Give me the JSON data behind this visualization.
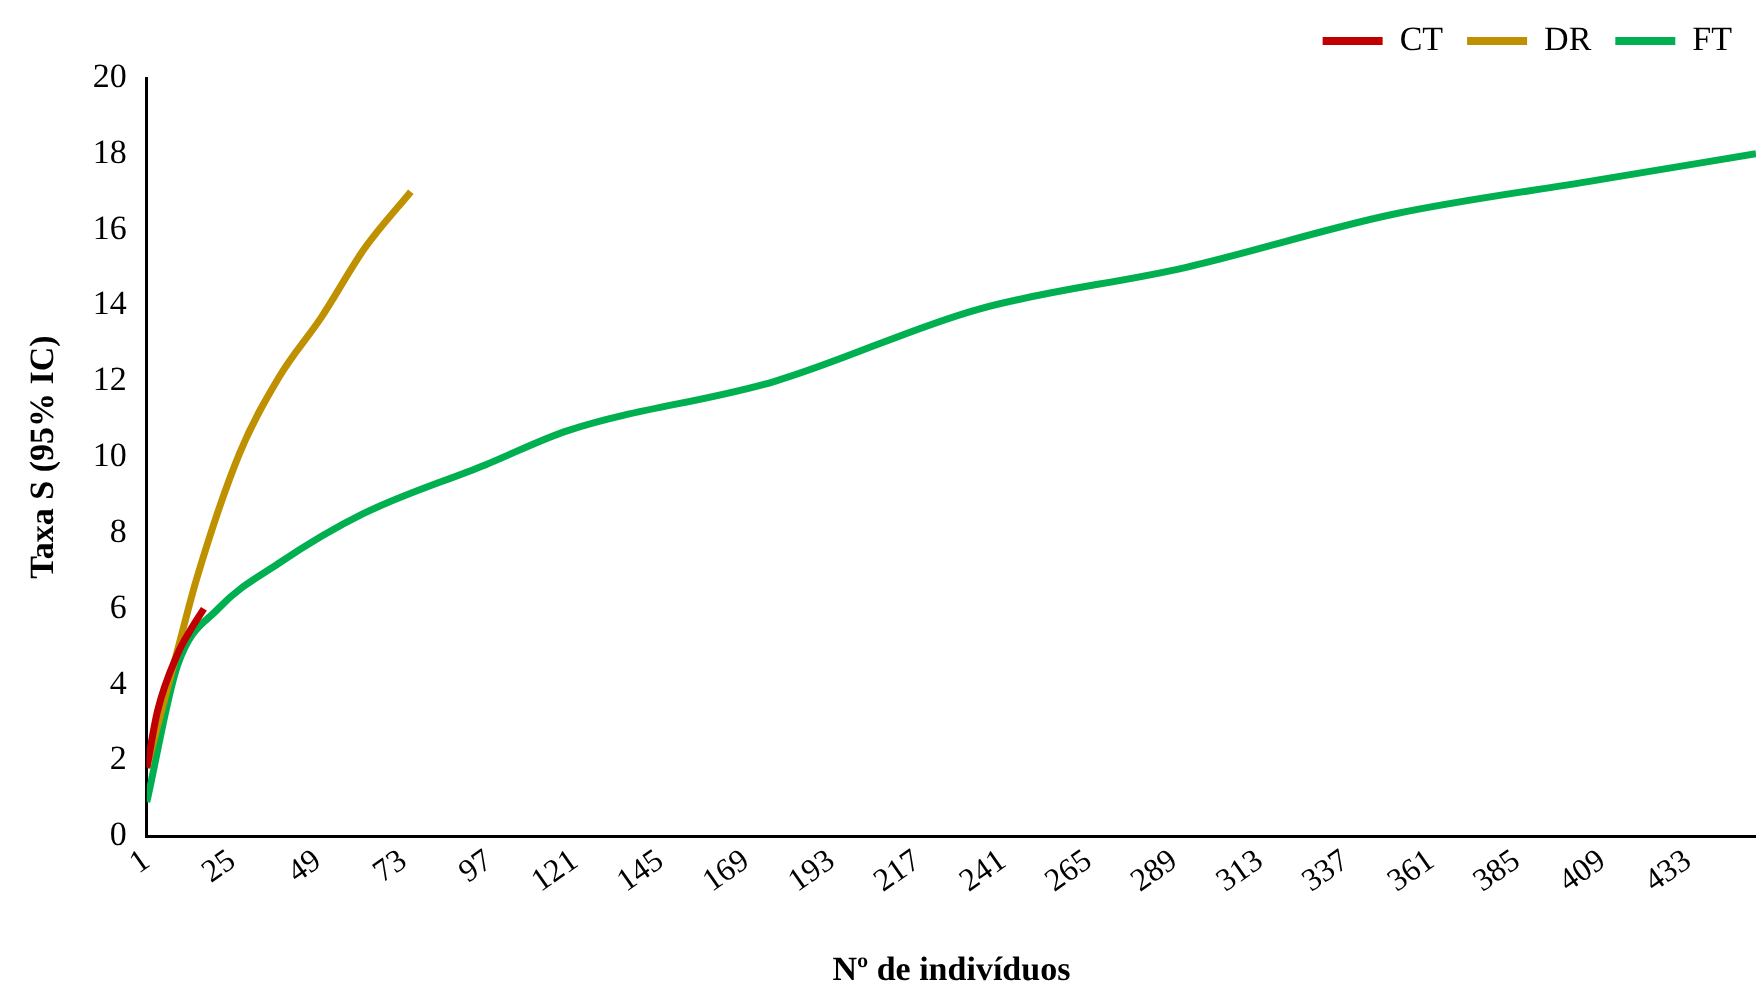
{
  "chart_data": {
    "type": "line",
    "xlabel": "Nº de indivíduos",
    "ylabel": "Taxa S (95% IC)",
    "xlim": [
      1,
      452
    ],
    "xticks": [
      1,
      25,
      49,
      73,
      97,
      121,
      145,
      169,
      193,
      217,
      241,
      265,
      289,
      313,
      337,
      361,
      385,
      409,
      433
    ],
    "ylim": [
      0,
      20
    ],
    "yticks": [
      0,
      2,
      4,
      6,
      8,
      10,
      12,
      14,
      16,
      18,
      20
    ],
    "grid": false,
    "legend": "top right",
    "marker": "none",
    "line_style": "solid",
    "series": [
      {
        "name": "CT",
        "color": "#c00000",
        "x": [
          1,
          4,
          9.6,
          13,
          17
        ],
        "values": [
          1.8,
          3.3,
          4.8,
          5.4,
          6.0
        ]
      },
      {
        "name": "DR",
        "color": "#bf9000",
        "x": [
          1,
          4,
          9.6,
          15,
          27,
          38,
          50,
          62,
          75
        ],
        "values": [
          1.8,
          2.9,
          4.9,
          6.8,
          10.1,
          12.1,
          13.7,
          15.5,
          17.0
        ]
      },
      {
        "name": "FT",
        "color": "#00b050",
        "x": [
          1,
          9.6,
          21,
          38,
          61.5,
          96,
          119,
          177,
          234,
          292,
          350,
          407,
          452
        ],
        "values": [
          0.9,
          4.5,
          6.0,
          7.2,
          8.5,
          9.8,
          10.7,
          12.0,
          13.9,
          15.0,
          16.4,
          17.3,
          18.0
        ]
      }
    ]
  }
}
